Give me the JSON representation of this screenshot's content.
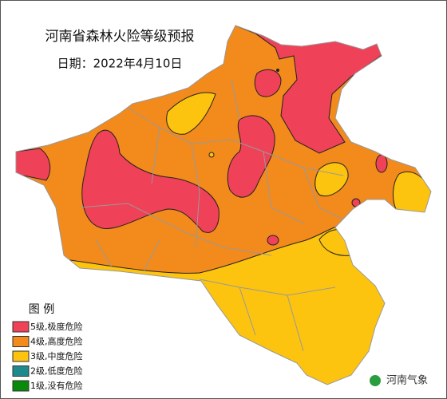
{
  "title": "河南省森林火险等级预报",
  "date": "日期：2022年4月10日",
  "legend": {
    "title": "图  例",
    "items": [
      {
        "label": "5级,极度危险",
        "color": "#ef4157"
      },
      {
        "label": "4级,高度危险",
        "color": "#f28a1c"
      },
      {
        "label": "3级,中度危险",
        "color": "#fcc30f"
      },
      {
        "label": "2级,低度危险",
        "color": "#1e8a8c"
      },
      {
        "label": "1级,没有危险",
        "color": "#0a8a0a"
      }
    ]
  },
  "watermark": "河南气象"
}
